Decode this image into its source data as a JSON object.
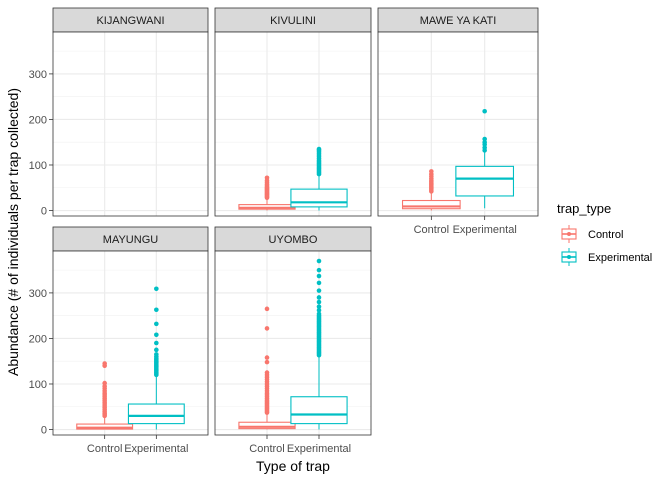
{
  "chart_data": {
    "type": "boxplot",
    "xlabel": "Type of trap",
    "ylabel": "Abundance (# of individuals per trap collected)",
    "ylim": [
      -12,
      392
    ],
    "yticks": [
      0,
      100,
      200,
      300
    ],
    "categories": [
      "Control",
      "Experimental"
    ],
    "legend": {
      "title": "trap_type",
      "position": "right",
      "items": [
        {
          "label": "Control",
          "color": "#F8766D"
        },
        {
          "label": "Experimental",
          "color": "#00BFC4"
        }
      ]
    },
    "colors": {
      "Control": "#F8766D",
      "Experimental": "#00BFC4"
    },
    "facets": [
      {
        "name": "KIJANGWANI",
        "boxes": []
      },
      {
        "name": "KIVULINI",
        "boxes": [
          {
            "category": "Control",
            "min": 0,
            "q1": 3,
            "median": 6,
            "q3": 13,
            "max": 26,
            "outliers": [
              28,
              30,
              32,
              34,
              36,
              38,
              40,
              42,
              44,
              46,
              48,
              50,
              52,
              55,
              58,
              62,
              66,
              72
            ]
          },
          {
            "category": "Experimental",
            "min": 0,
            "q1": 8,
            "median": 18,
            "q3": 47,
            "max": 78,
            "outliers": [
              80,
              83,
              86,
              89,
              92,
              95,
              98,
              101,
              104,
              107,
              110,
              114,
              118,
              122,
              126,
              130,
              133,
              135
            ]
          }
        ]
      },
      {
        "name": "MAWE YA KATI",
        "boxes": [
          {
            "category": "Control",
            "min": 0,
            "q1": 4,
            "median": 9,
            "q3": 22,
            "max": 40,
            "outliers": [
              42,
              45,
              48,
              51,
              54,
              57,
              60,
              63,
              66,
              70,
              75,
              80,
              86
            ]
          },
          {
            "category": "Experimental",
            "min": 5,
            "q1": 32,
            "median": 70,
            "q3": 97,
            "max": 128,
            "outliers": [
              132,
              138,
              145,
              150,
              157,
              218
            ]
          }
        ]
      },
      {
        "name": "MAYUNGU",
        "boxes": [
          {
            "category": "Control",
            "min": 0,
            "q1": 1,
            "median": 4,
            "q3": 12,
            "max": 28,
            "outliers": [
              30,
              33,
              36,
              40,
              44,
              48,
              52,
              56,
              60,
              64,
              68,
              72,
              76,
              80,
              85,
              90,
              95,
              102,
              140,
              145
            ]
          },
          {
            "category": "Experimental",
            "min": 0,
            "q1": 13,
            "median": 30,
            "q3": 56,
            "max": 118,
            "outliers": [
              120,
              123,
              126,
              129,
              132,
              135,
              138,
              141,
              144,
              147,
              150,
              153,
              156,
              160,
              165,
              175,
              190,
              208,
              232,
              263,
              309
            ]
          }
        ]
      },
      {
        "name": "UYOMBO",
        "boxes": [
          {
            "category": "Control",
            "min": 0,
            "q1": 2,
            "median": 6,
            "q3": 16,
            "max": 35,
            "outliers": [
              37,
              40,
              43,
              46,
              49,
              52,
              55,
              58,
              61,
              64,
              68,
              72,
              76,
              80,
              85,
              90,
              95,
              100,
              105,
              110,
              115,
              120,
              125,
              148,
              158,
              222,
              265
            ]
          },
          {
            "category": "Experimental",
            "min": 0,
            "q1": 13,
            "median": 33,
            "q3": 72,
            "max": 160,
            "outliers": [
              163,
              166,
              169,
              172,
              175,
              178,
              181,
              184,
              187,
              190,
              193,
              196,
              199,
              202,
              205,
              208,
              211,
              214,
              217,
              220,
              223,
              226,
              229,
              232,
              235,
              238,
              241,
              244,
              247,
              250,
              254,
              262,
              270,
              280,
              290,
              305,
              322,
              337,
              350,
              370
            ]
          }
        ]
      }
    ]
  }
}
